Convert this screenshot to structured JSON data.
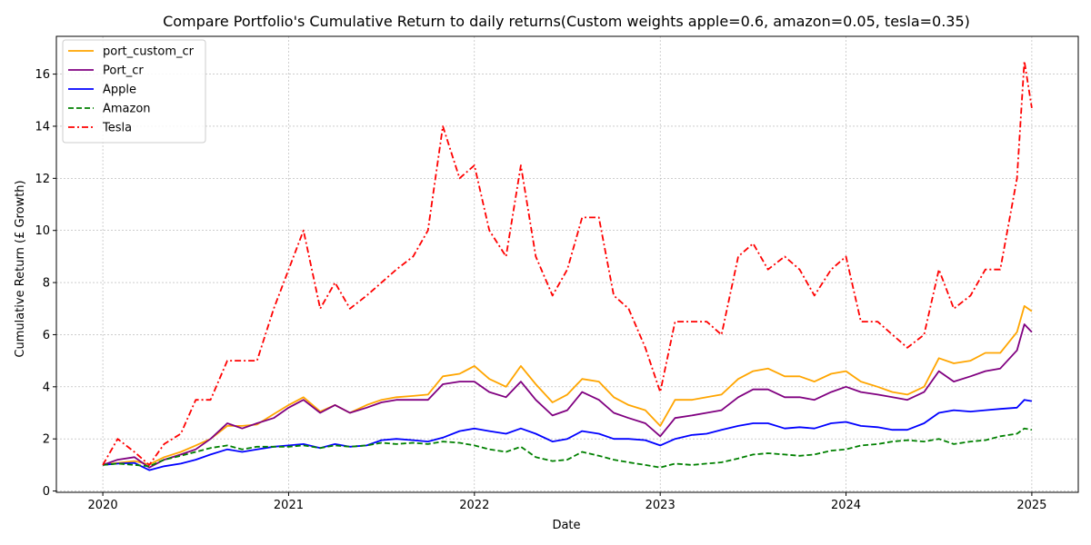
{
  "chart_data": {
    "type": "line",
    "title": "Compare Portfolio's Cumulative Return to daily returns(Custom weights apple=0.6, amazon=0.05, tesla=0.35)",
    "xlabel": "Date",
    "ylabel": "Cumulative Return (£ Growth)",
    "x_tick_labels": [
      "2020",
      "2021",
      "2022",
      "2023",
      "2024",
      "2025"
    ],
    "x_tick_values": [
      2020,
      2021,
      2022,
      2023,
      2024,
      2025
    ],
    "y_tick_values": [
      0,
      2,
      4,
      6,
      8,
      10,
      12,
      14,
      16
    ],
    "y_tick_labels": [
      "0",
      "2",
      "4",
      "6",
      "8",
      "10",
      "12",
      "14",
      "16"
    ],
    "xlim": [
      2019.75,
      2025.25
    ],
    "ylim": [
      -0.05,
      17.45
    ],
    "grid": true,
    "legend_position": "top-left",
    "x": [
      2020.0,
      2020.08,
      2020.17,
      2020.25,
      2020.33,
      2020.42,
      2020.5,
      2020.58,
      2020.67,
      2020.75,
      2020.83,
      2020.92,
      2021.0,
      2021.08,
      2021.17,
      2021.25,
      2021.33,
      2021.42,
      2021.5,
      2021.58,
      2021.67,
      2021.75,
      2021.83,
      2021.92,
      2022.0,
      2022.08,
      2022.17,
      2022.25,
      2022.33,
      2022.42,
      2022.5,
      2022.58,
      2022.67,
      2022.75,
      2022.83,
      2022.92,
      2023.0,
      2023.08,
      2023.17,
      2023.25,
      2023.33,
      2023.42,
      2023.5,
      2023.58,
      2023.67,
      2023.75,
      2023.83,
      2023.92,
      2024.0,
      2024.08,
      2024.17,
      2024.25,
      2024.33,
      2024.42,
      2024.5,
      2024.58,
      2024.67,
      2024.75,
      2024.83,
      2024.92,
      2024.96,
      2025.0
    ],
    "series": [
      {
        "name": "port_custom_cr",
        "color": "#FFA500",
        "dash": "solid",
        "values": [
          1.0,
          1.08,
          1.15,
          1.02,
          1.3,
          1.5,
          1.75,
          2.0,
          2.5,
          2.5,
          2.55,
          2.95,
          3.3,
          3.6,
          3.05,
          3.3,
          3.0,
          3.3,
          3.5,
          3.6,
          3.65,
          3.7,
          4.4,
          4.5,
          4.8,
          4.3,
          4.0,
          4.8,
          4.1,
          3.4,
          3.7,
          4.3,
          4.2,
          3.6,
          3.3,
          3.1,
          2.5,
          3.5,
          3.5,
          3.6,
          3.7,
          4.3,
          4.6,
          4.7,
          4.4,
          4.4,
          4.2,
          4.5,
          4.6,
          4.2,
          4.0,
          3.8,
          3.7,
          4.0,
          5.1,
          4.9,
          5.0,
          5.3,
          5.3,
          6.1,
          7.1,
          6.9
        ]
      },
      {
        "name": "Port_cr",
        "color": "#800080",
        "dash": "solid",
        "values": [
          1.0,
          1.2,
          1.3,
          0.9,
          1.2,
          1.4,
          1.6,
          2.0,
          2.6,
          2.4,
          2.6,
          2.8,
          3.2,
          3.5,
          3.0,
          3.3,
          3.0,
          3.2,
          3.4,
          3.5,
          3.5,
          3.5,
          4.1,
          4.2,
          4.2,
          3.8,
          3.6,
          4.2,
          3.5,
          2.9,
          3.1,
          3.8,
          3.5,
          3.0,
          2.8,
          2.6,
          2.1,
          2.8,
          2.9,
          3.0,
          3.1,
          3.6,
          3.9,
          3.9,
          3.6,
          3.6,
          3.5,
          3.8,
          4.0,
          3.8,
          3.7,
          3.6,
          3.5,
          3.8,
          4.6,
          4.2,
          4.4,
          4.6,
          4.7,
          5.4,
          6.4,
          6.1
        ]
      },
      {
        "name": "Apple",
        "color": "#0000FF",
        "dash": "solid",
        "values": [
          1.0,
          1.05,
          1.08,
          0.8,
          0.95,
          1.05,
          1.2,
          1.4,
          1.6,
          1.5,
          1.6,
          1.7,
          1.75,
          1.8,
          1.65,
          1.8,
          1.7,
          1.75,
          1.95,
          2.0,
          1.95,
          1.9,
          2.05,
          2.3,
          2.4,
          2.3,
          2.2,
          2.4,
          2.2,
          1.9,
          2.0,
          2.3,
          2.2,
          2.0,
          2.0,
          1.95,
          1.75,
          2.0,
          2.15,
          2.2,
          2.35,
          2.5,
          2.6,
          2.6,
          2.4,
          2.45,
          2.4,
          2.6,
          2.65,
          2.5,
          2.45,
          2.35,
          2.35,
          2.6,
          3.0,
          3.1,
          3.05,
          3.1,
          3.15,
          3.2,
          3.5,
          3.45
        ]
      },
      {
        "name": "Amazon",
        "color": "#008000",
        "dash": "dashed",
        "values": [
          1.0,
          1.05,
          1.0,
          0.95,
          1.2,
          1.35,
          1.5,
          1.65,
          1.75,
          1.6,
          1.7,
          1.7,
          1.7,
          1.75,
          1.65,
          1.75,
          1.7,
          1.75,
          1.85,
          1.8,
          1.85,
          1.8,
          1.9,
          1.85,
          1.75,
          1.6,
          1.5,
          1.7,
          1.3,
          1.15,
          1.2,
          1.5,
          1.35,
          1.2,
          1.1,
          1.0,
          0.9,
          1.05,
          1.0,
          1.05,
          1.1,
          1.25,
          1.4,
          1.45,
          1.4,
          1.35,
          1.4,
          1.55,
          1.6,
          1.75,
          1.8,
          1.9,
          1.95,
          1.9,
          2.0,
          1.8,
          1.9,
          1.95,
          2.1,
          2.2,
          2.4,
          2.35
        ]
      },
      {
        "name": "Tesla",
        "color": "#FF0000",
        "dash": "dashdot",
        "values": [
          1.0,
          2.0,
          1.5,
          1.0,
          1.8,
          2.2,
          3.5,
          3.5,
          5.0,
          5.0,
          5.0,
          7.0,
          8.5,
          10.0,
          7.0,
          8.0,
          7.0,
          7.5,
          8.0,
          8.5,
          9.0,
          10.0,
          14.0,
          12.0,
          12.5,
          10.0,
          9.0,
          12.5,
          9.0,
          7.5,
          8.5,
          10.5,
          10.5,
          7.5,
          7.0,
          5.5,
          3.8,
          6.5,
          6.5,
          6.5,
          6.0,
          9.0,
          9.5,
          8.5,
          9.0,
          8.5,
          7.5,
          8.5,
          9.0,
          6.5,
          6.5,
          6.0,
          5.5,
          6.0,
          8.5,
          7.0,
          7.5,
          8.5,
          8.5,
          12.0,
          16.5,
          14.7
        ]
      }
    ]
  }
}
